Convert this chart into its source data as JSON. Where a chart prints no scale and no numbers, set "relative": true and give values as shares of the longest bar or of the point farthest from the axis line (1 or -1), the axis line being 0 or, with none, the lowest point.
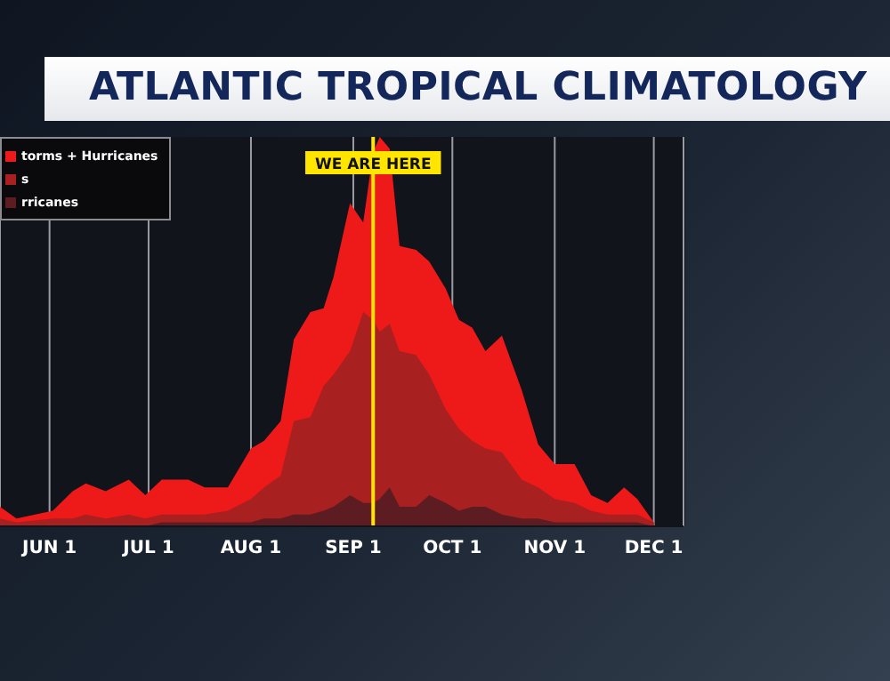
{
  "chart_data": {
    "type": "area",
    "title": "ATLANTIC TROPICAL CLIMATOLOGY",
    "relative": true,
    "x": [
      "--05-17",
      "--05-22",
      "--06-02",
      "--06-08",
      "--06-12",
      "--06-18",
      "--06-25",
      "--06-30",
      "--07-05",
      "--07-13",
      "--07-18",
      "--07-25",
      "--08-01",
      "--08-05",
      "--08-10",
      "--08-14",
      "--08-19",
      "--08-23",
      "--08-26",
      "--08-31",
      "--09-04",
      "--09-07",
      "--09-09",
      "--09-12",
      "--09-15",
      "--09-20",
      "--09-24",
      "--09-29",
      "--10-03",
      "--10-07",
      "--10-11",
      "--10-16",
      "--10-22",
      "--10-27",
      "--11-01",
      "--11-07",
      "--11-12",
      "--11-17",
      "--11-22",
      "--11-26",
      "--12-01"
    ],
    "series": [
      {
        "name": "torms + Hurricanes",
        "color": "#ee1a1a",
        "values": [
          0.05,
          0.02,
          0.04,
          0.09,
          0.11,
          0.09,
          0.12,
          0.08,
          0.12,
          0.12,
          0.1,
          0.1,
          0.2,
          0.22,
          0.27,
          0.48,
          0.55,
          0.56,
          0.64,
          0.83,
          0.78,
          0.96,
          1,
          0.97,
          0.72,
          0.71,
          0.68,
          0.61,
          0.53,
          0.51,
          0.45,
          0.49,
          0.35,
          0.21,
          0.16,
          0.16,
          0.08,
          0.06,
          0.1,
          0.07,
          0.01
        ]
      },
      {
        "name": "s",
        "color": "#a8201f",
        "values": [
          0.02,
          0.01,
          0.02,
          0.02,
          0.03,
          0.02,
          0.03,
          0.02,
          0.03,
          0.03,
          0.03,
          0.04,
          0.07,
          0.1,
          0.13,
          0.27,
          0.28,
          0.36,
          0.39,
          0.45,
          0.55,
          0.53,
          0.5,
          0.52,
          0.45,
          0.44,
          0.39,
          0.3,
          0.25,
          0.22,
          0.2,
          0.19,
          0.12,
          0.1,
          0.07,
          0.06,
          0.04,
          0.03,
          0.03,
          0.03,
          0.01
        ]
      },
      {
        "name": "rricanes",
        "color": "#5c1c22",
        "values": [
          0,
          0,
          0,
          0,
          0,
          0,
          0,
          0,
          0.01,
          0.01,
          0.01,
          0.01,
          0.01,
          0.02,
          0.02,
          0.03,
          0.03,
          0.04,
          0.05,
          0.08,
          0.06,
          0.06,
          0.07,
          0.1,
          0.05,
          0.05,
          0.08,
          0.06,
          0.04,
          0.05,
          0.05,
          0.03,
          0.02,
          0.02,
          0.01,
          0.01,
          0.01,
          0.01,
          0.01,
          0.01,
          0
        ]
      }
    ],
    "xlim": [
      "--05-17",
      "--12-10"
    ],
    "xticks": [
      {
        "value": "--06-01",
        "label": "JUN 1"
      },
      {
        "value": "--07-01",
        "label": "JUL 1"
      },
      {
        "value": "--08-01",
        "label": "AUG 1"
      },
      {
        "value": "--09-01",
        "label": "SEP 1"
      },
      {
        "value": "--10-01",
        "label": "OCT 1"
      },
      {
        "value": "--11-01",
        "label": "NOV 1"
      },
      {
        "value": "--12-01",
        "label": "DEC 1"
      }
    ],
    "ref_lines": [
      {
        "axis": "x",
        "value": "--09-07",
        "label": "WE ARE HERE",
        "color": "#ffe500"
      }
    ],
    "grid": "x",
    "legend": "top left"
  }
}
